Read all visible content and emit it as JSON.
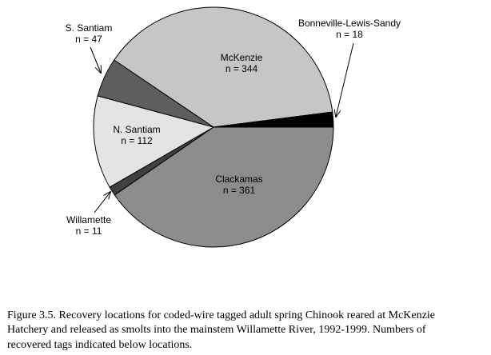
{
  "chart_data": {
    "type": "pie",
    "categories": [
      "Clackamas",
      "Willamette",
      "N. Santiam",
      "S. Santiam",
      "McKenzie",
      "Bonneville-Lewis-Sandy"
    ],
    "values": [
      361,
      11,
      112,
      47,
      344,
      18
    ],
    "value_labels": [
      "n = 361",
      "n = 11",
      "n = 112",
      "n = 47",
      "n = 344",
      "n = 18"
    ],
    "colors": [
      "#8c8c8c",
      "#404040",
      "#e4e4e4",
      "#5e5e5e",
      "#c6c6c6",
      "#000000"
    ]
  },
  "caption": [
    "Figure 3.5. Recovery locations for coded-wire tagged adult spring Chinook reared at McKenzie",
    "Hatchery and released as smolts into the mainstem Willamette River, 1992-1999.  Numbers of",
    "recovered tags indicated below locations."
  ]
}
